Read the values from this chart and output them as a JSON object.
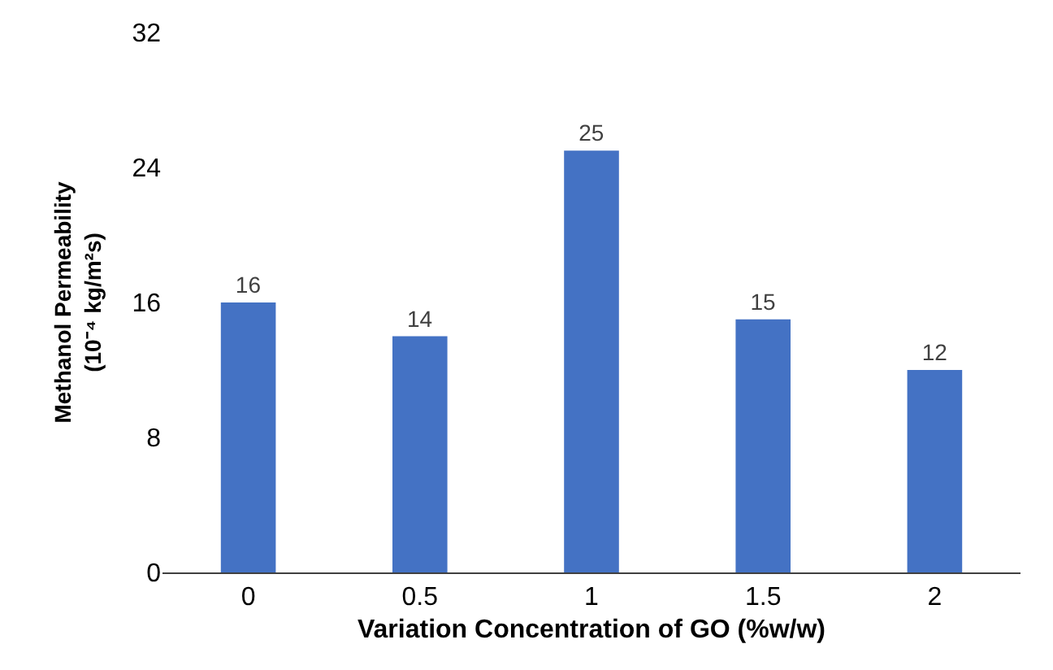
{
  "chart_data": {
    "type": "bar",
    "xlabel": "Variation Concentration of GO (%w/w)",
    "ylabel": "Methanol Permeability\n(10⁻⁴ kg/m²s)",
    "categories": [
      "0",
      "0.5",
      "1",
      "1.5",
      "2"
    ],
    "values": [
      16,
      14,
      25,
      15,
      12
    ],
    "color": "#4472c4",
    "ylim": [
      0,
      32
    ],
    "yticks": [
      0,
      8,
      16,
      24,
      32
    ],
    "data_labels": true
  }
}
